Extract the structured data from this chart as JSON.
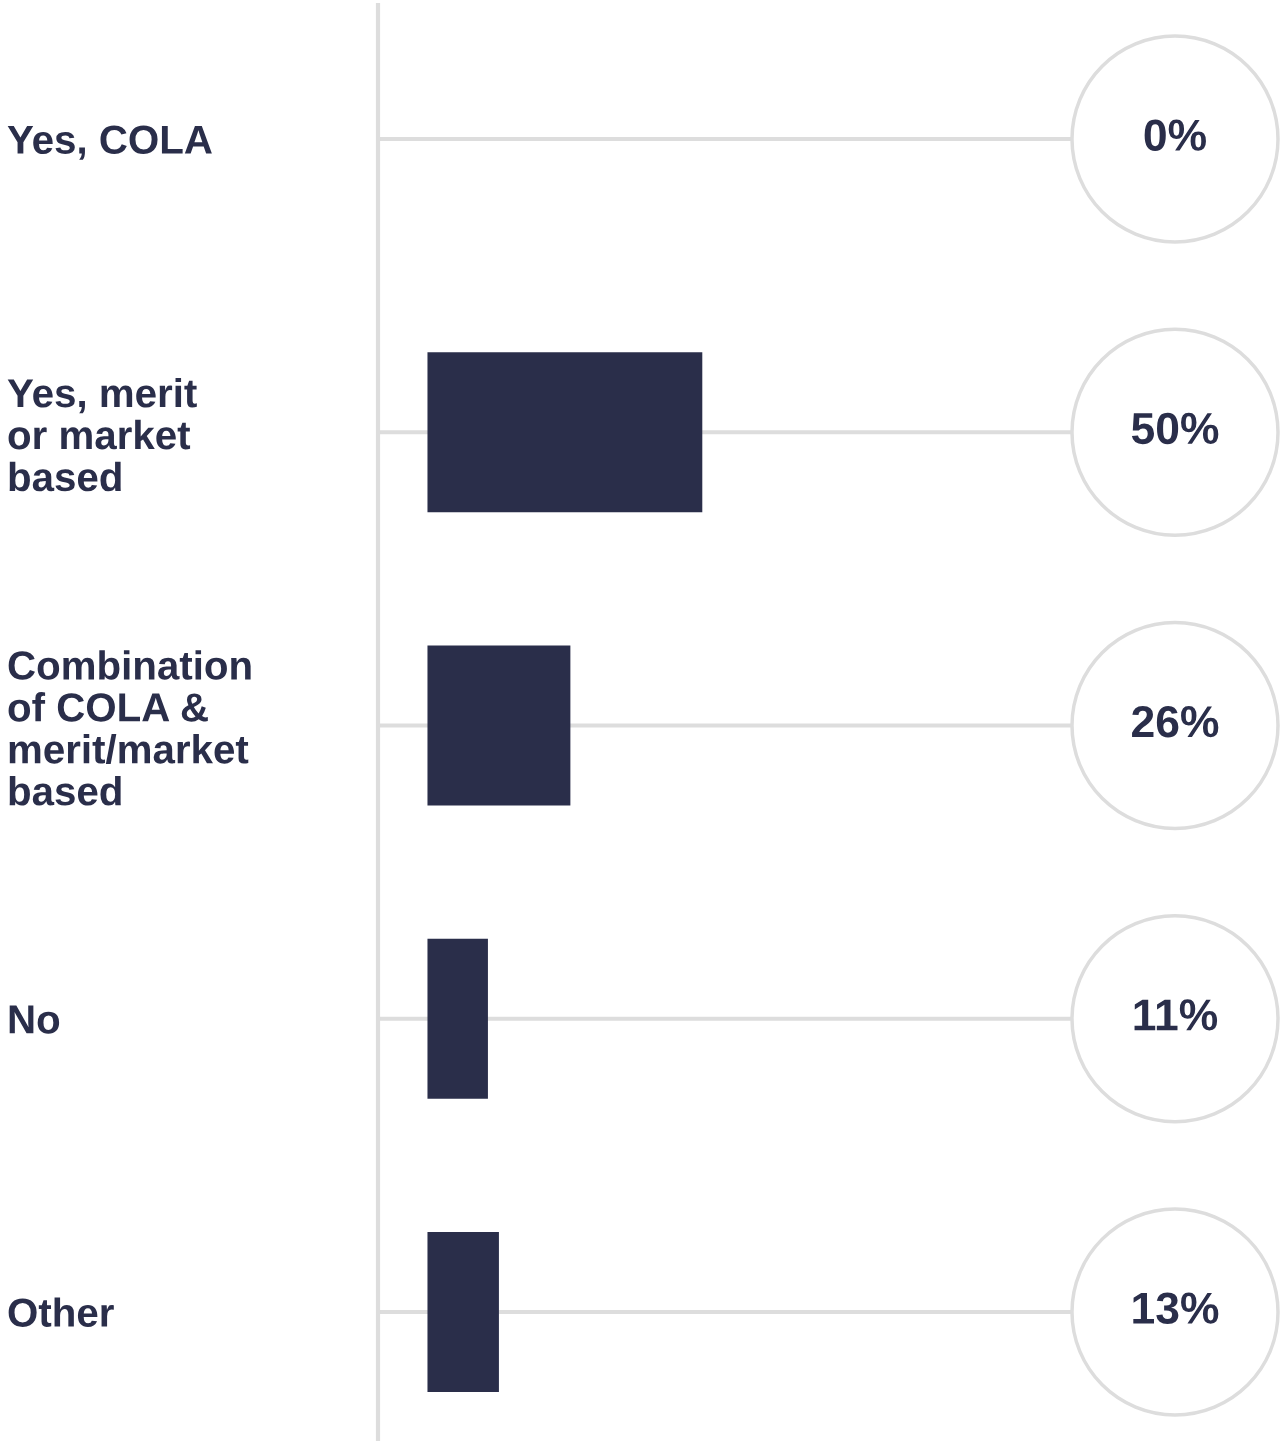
{
  "chart_data": {
    "type": "bar",
    "orientation": "horizontal",
    "categories": [
      "Yes, COLA",
      "Yes, merit\nor market\nbased",
      "Combination\nof COLA &\nmerit/market\nbased",
      "No",
      "Other"
    ],
    "values": [
      0,
      50,
      26,
      11,
      13
    ],
    "value_labels": [
      "0%",
      "50%",
      "26%",
      "11%",
      "13%"
    ],
    "color": "#2a2e4a",
    "grid": "y",
    "tick_labels": "y"
  }
}
